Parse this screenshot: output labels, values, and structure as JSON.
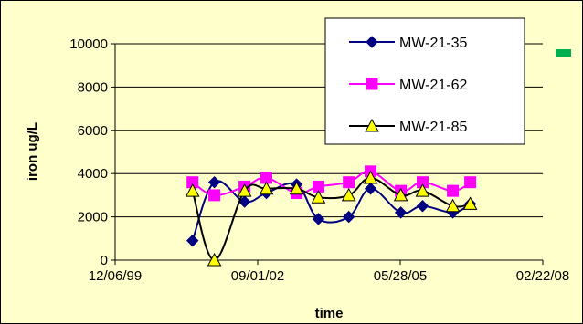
{
  "chart_data": {
    "type": "line",
    "title": "",
    "xlabel": "time",
    "ylabel": "iron ug/L",
    "ylim": [
      0,
      10000
    ],
    "yticks": [
      0,
      2000,
      4000,
      6000,
      8000,
      10000
    ],
    "xlim": [
      "12/06/99",
      "02/22/08"
    ],
    "xticks": [
      "12/06/99",
      "09/01/02",
      "05/28/05",
      "02/22/08"
    ],
    "grid": "horizontal",
    "legend_position": "top-right",
    "series": [
      {
        "name": "MW-21-35",
        "color": "#000080",
        "marker": "diamond",
        "points": [
          [
            "2001-06-01",
            900
          ],
          [
            "2001-11-01",
            3600
          ],
          [
            "2002-06-01",
            2700
          ],
          [
            "2002-11-01",
            3100
          ],
          [
            "2003-06-01",
            3500
          ],
          [
            "2003-11-01",
            1900
          ],
          [
            "2004-06-01",
            2000
          ],
          [
            "2004-11-01",
            3300
          ],
          [
            "2005-06-01",
            2200
          ],
          [
            "2005-11-01",
            2500
          ],
          [
            "2006-06-01",
            2200
          ],
          [
            "2006-10-01",
            2600
          ]
        ]
      },
      {
        "name": "MW-21-62",
        "color": "#ff00ff",
        "marker": "square",
        "points": [
          [
            "2001-06-01",
            3600
          ],
          [
            "2001-11-01",
            3000
          ],
          [
            "2002-06-01",
            3400
          ],
          [
            "2002-11-01",
            3800
          ],
          [
            "2003-06-01",
            3100
          ],
          [
            "2003-11-01",
            3400
          ],
          [
            "2004-06-01",
            3600
          ],
          [
            "2004-11-01",
            4100
          ],
          [
            "2005-06-01",
            3200
          ],
          [
            "2005-11-01",
            3600
          ],
          [
            "2006-06-01",
            3200
          ],
          [
            "2006-10-01",
            3600
          ]
        ]
      },
      {
        "name": "MW-21-85",
        "color": "#000000",
        "marker": "triangle",
        "points": [
          [
            "2001-06-01",
            3200
          ],
          [
            "2001-11-01",
            0
          ],
          [
            "2002-06-01",
            3200
          ],
          [
            "2002-11-01",
            3300
          ],
          [
            "2003-06-01",
            3300
          ],
          [
            "2003-11-01",
            2900
          ],
          [
            "2004-06-01",
            3000
          ],
          [
            "2004-11-01",
            3800
          ],
          [
            "2005-06-01",
            3000
          ],
          [
            "2005-11-01",
            3200
          ],
          [
            "2006-06-01",
            2500
          ],
          [
            "2006-10-01",
            2600
          ]
        ]
      }
    ]
  },
  "colors": {
    "chart_background": "#ffffcc",
    "legend_background": "#ffffff",
    "gridline": "#000000",
    "marker_fill_triangle": "#ffff00",
    "green_marker": "#00b050"
  }
}
